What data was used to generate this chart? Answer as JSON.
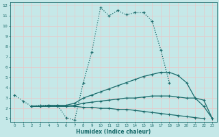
{
  "xlabel": "Humidex (Indice chaleur)",
  "ylabel": "",
  "bg_color": "#c5e8e8",
  "grid_color": "#e8c8c8",
  "line_color": "#1a6b6b",
  "xlim": [
    -0.5,
    23.5
  ],
  "ylim": [
    0.7,
    12.3
  ],
  "xticks": [
    0,
    1,
    2,
    3,
    4,
    5,
    6,
    7,
    8,
    9,
    10,
    11,
    12,
    13,
    14,
    15,
    16,
    17,
    18,
    19,
    20,
    21,
    22,
    23
  ],
  "yticks": [
    1,
    2,
    3,
    4,
    5,
    6,
    7,
    8,
    9,
    10,
    11,
    12
  ],
  "line1_x": [
    0,
    1,
    2,
    3,
    4,
    5,
    6,
    7,
    8,
    9,
    10,
    11,
    12,
    13,
    14,
    15,
    16,
    17,
    18
  ],
  "line1_y": [
    3.3,
    2.7,
    2.2,
    2.3,
    2.3,
    2.3,
    1.1,
    0.85,
    4.5,
    7.5,
    11.8,
    11.0,
    11.5,
    11.1,
    11.3,
    11.3,
    10.5,
    7.7,
    4.5
  ],
  "line1_dot": true,
  "line2_x": [
    2,
    3,
    4,
    5,
    6,
    7,
    8,
    9,
    10,
    11,
    12,
    13,
    14,
    15,
    16,
    17,
    18,
    19,
    20,
    21,
    22,
    23
  ],
  "line2_y": [
    2.2,
    2.2,
    2.3,
    2.3,
    2.3,
    2.5,
    3.0,
    3.3,
    3.6,
    3.9,
    4.2,
    4.5,
    4.8,
    5.1,
    5.3,
    5.5,
    5.5,
    5.2,
    4.5,
    3.0,
    2.2,
    1.0
  ],
  "line3_x": [
    2,
    3,
    4,
    5,
    6,
    7,
    8,
    9,
    10,
    11,
    12,
    13,
    14,
    15,
    16,
    17,
    18,
    19,
    20,
    21,
    22,
    23
  ],
  "line3_y": [
    2.2,
    2.2,
    2.2,
    2.2,
    2.2,
    2.3,
    2.5,
    2.6,
    2.7,
    2.8,
    2.9,
    3.0,
    3.0,
    3.1,
    3.2,
    3.2,
    3.2,
    3.1,
    3.0,
    3.0,
    2.8,
    1.0
  ],
  "line4_x": [
    2,
    3,
    4,
    5,
    6,
    7,
    8,
    9,
    10,
    11,
    12,
    13,
    14,
    15,
    16,
    17,
    18,
    19,
    20,
    21,
    22
  ],
  "line4_y": [
    2.2,
    2.2,
    2.2,
    2.2,
    2.2,
    2.2,
    2.1,
    2.1,
    2.0,
    2.0,
    1.9,
    1.9,
    1.8,
    1.7,
    1.6,
    1.5,
    1.4,
    1.3,
    1.2,
    1.1,
    1.0
  ]
}
